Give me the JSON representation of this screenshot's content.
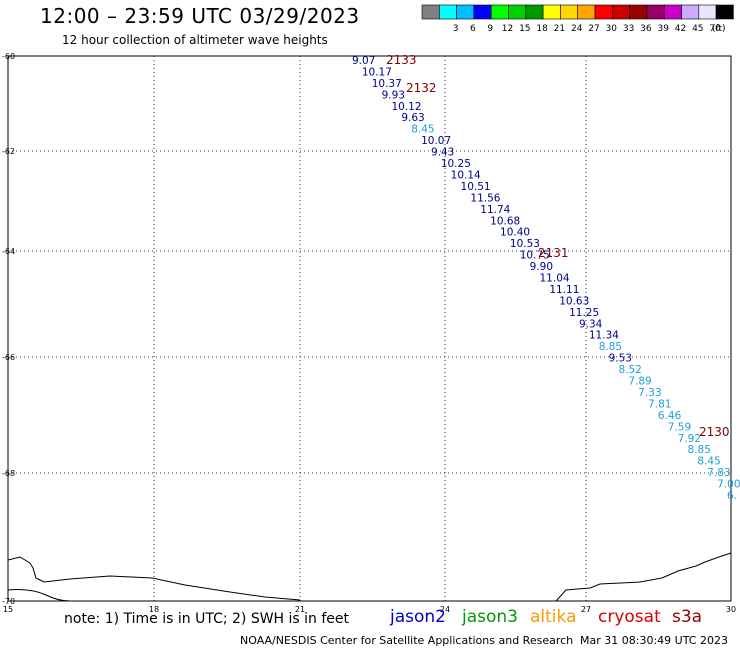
{
  "title": "12:00 – 23:59 UTC 03/29/2023",
  "subtitle": "12 hour collection of altimeter wave heights",
  "legend": {
    "units": "(ft)",
    "bins": [
      {
        "label": "",
        "color": "#808080"
      },
      {
        "label": "3",
        "color": "#00ffff"
      },
      {
        "label": "6",
        "color": "#00bfff"
      },
      {
        "label": "9",
        "color": "#0000ff"
      },
      {
        "label": "12",
        "color": "#00ff00"
      },
      {
        "label": "15",
        "color": "#00d000"
      },
      {
        "label": "18",
        "color": "#009900"
      },
      {
        "label": "21",
        "color": "#ffff00"
      },
      {
        "label": "24",
        "color": "#ffd700"
      },
      {
        "label": "27",
        "color": "#ffa500"
      },
      {
        "label": "30",
        "color": "#ff0000"
      },
      {
        "label": "33",
        "color": "#cc0000"
      },
      {
        "label": "36",
        "color": "#990000"
      },
      {
        "label": "39",
        "color": "#990066"
      },
      {
        "label": "42",
        "color": "#cc00cc"
      },
      {
        "label": "45",
        "color": "#ccaaff"
      },
      {
        "label": "70",
        "color": "#e6e6ff"
      },
      {
        "label": "",
        "color": "#000000"
      }
    ]
  },
  "axes": {
    "lat_labels": [
      {
        "text": "-60",
        "lat": -60
      },
      {
        "text": "-62",
        "lat": -62
      },
      {
        "text": "-64",
        "lat": -64
      },
      {
        "text": "-66",
        "lat": -66
      },
      {
        "text": "-68",
        "lat": -68
      },
      {
        "text": "-70",
        "lat": -70
      }
    ],
    "lon_labels": [
      {
        "text": "15",
        "lon": 15
      },
      {
        "text": "18",
        "lon": 18
      },
      {
        "text": "21",
        "lon": 21
      },
      {
        "text": "24",
        "lon": 24
      },
      {
        "text": "27",
        "lon": 27
      },
      {
        "text": "30",
        "lon": 30
      }
    ]
  },
  "passes": [
    {
      "label": "2133",
      "color": "#800000"
    },
    {
      "label": "2132",
      "color": "#800000"
    },
    {
      "label": "2131",
      "color": "#800000"
    },
    {
      "label": "2130",
      "color": "#800000"
    }
  ],
  "colors": {
    "dark_blue": "#00008b",
    "light_blue": "#1e9fd8"
  },
  "observations": [
    {
      "value": "9.07",
      "c": "dark_blue"
    },
    {
      "value": "10.17",
      "c": "dark_blue"
    },
    {
      "value": "10.37",
      "c": "dark_blue"
    },
    {
      "value": "9.93",
      "c": "dark_blue"
    },
    {
      "value": "10.12",
      "c": "dark_blue"
    },
    {
      "value": "9.63",
      "c": "dark_blue"
    },
    {
      "value": "8.45",
      "c": "light_blue"
    },
    {
      "value": "10.07",
      "c": "dark_blue"
    },
    {
      "value": "9.43",
      "c": "dark_blue"
    },
    {
      "value": "10.25",
      "c": "dark_blue"
    },
    {
      "value": "10.14",
      "c": "dark_blue"
    },
    {
      "value": "10.51",
      "c": "dark_blue"
    },
    {
      "value": "11.56",
      "c": "dark_blue"
    },
    {
      "value": "11.74",
      "c": "dark_blue"
    },
    {
      "value": "10.68",
      "c": "dark_blue"
    },
    {
      "value": "10.40",
      "c": "dark_blue"
    },
    {
      "value": "10.53",
      "c": "dark_blue"
    },
    {
      "value": "10.75",
      "c": "dark_blue"
    },
    {
      "value": "9.90",
      "c": "dark_blue"
    },
    {
      "value": "11.04",
      "c": "dark_blue"
    },
    {
      "value": "11.11",
      "c": "dark_blue"
    },
    {
      "value": "10.63",
      "c": "dark_blue"
    },
    {
      "value": "11.25",
      "c": "dark_blue"
    },
    {
      "value": "9.34",
      "c": "dark_blue"
    },
    {
      "value": "11.34",
      "c": "dark_blue"
    },
    {
      "value": "8.85",
      "c": "light_blue"
    },
    {
      "value": "9.53",
      "c": "dark_blue"
    },
    {
      "value": "8.52",
      "c": "light_blue"
    },
    {
      "value": "7.89",
      "c": "light_blue"
    },
    {
      "value": "7.33",
      "c": "light_blue"
    },
    {
      "value": "7.81",
      "c": "light_blue"
    },
    {
      "value": "6.46",
      "c": "light_blue"
    },
    {
      "value": "7.59",
      "c": "light_blue"
    },
    {
      "value": "7.92",
      "c": "light_blue"
    },
    {
      "value": "8.85",
      "c": "light_blue"
    },
    {
      "value": "8.45",
      "c": "light_blue"
    },
    {
      "value": "7.83",
      "c": "light_blue"
    },
    {
      "value": "7.00",
      "c": "light_blue"
    },
    {
      "value": "6.",
      "c": "light_blue"
    }
  ],
  "note": "note: 1) Time is in UTC; 2) SWH is in feet",
  "satellites": [
    {
      "name": "jason2",
      "color": "#0000cc"
    },
    {
      "name": "jason3",
      "color": "#009900"
    },
    {
      "name": "altika",
      "color": "#ff9900"
    },
    {
      "name": "cryosat",
      "color": "#dd0000"
    },
    {
      "name": "s3a",
      "color": "#990000"
    }
  ],
  "credit": "NOAA/NESDIS Center for Satellite Applications and Research",
  "generated": "Mar 31 08:30:49 UTC 2023"
}
